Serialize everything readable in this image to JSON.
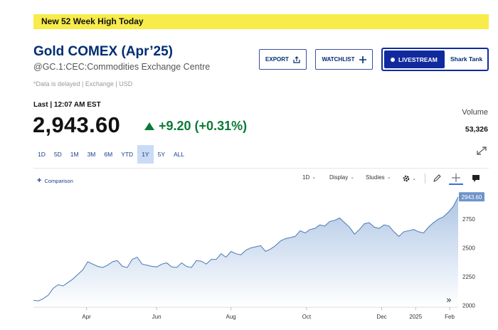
{
  "banner": {
    "text": "New 52 Week High Today"
  },
  "header": {
    "title": "Gold COMEX (Apr’25)",
    "subtitle": "@GC.1:CEC:Commodities Exchange Centre",
    "delay_note": "*Data is delayed | Exchange | USD"
  },
  "actions": {
    "export_label": "EXPORT",
    "watchlist_label": "WATCHLIST",
    "livestream_label": "LIVESTREAM",
    "livestream_show": "Shark Tank"
  },
  "quote": {
    "last_label": "Last | 12:07 AM EST",
    "price": "2,943.60",
    "change": "+9.20 (+0.31%)",
    "volume_label": "Volume",
    "volume": "53,326"
  },
  "ranges": [
    "1D",
    "5D",
    "1M",
    "3M",
    "6M",
    "YTD",
    "1Y",
    "5Y",
    "ALL"
  ],
  "active_range": "1Y",
  "chart_toolbar": {
    "comparison_label": "Comparison",
    "interval_label": "1D",
    "display_label": "Display",
    "studies_label": "Studies"
  },
  "colors": {
    "accent": "#002d72",
    "positive": "#0b7a37",
    "line": "#4a77b4",
    "fill_top": "#a9c2e3",
    "price_tag": "#6f93c9"
  },
  "icons": [
    "share-icon",
    "plus-icon",
    "gear-icon",
    "pencil-icon",
    "crosshair-icon",
    "comment-icon",
    "expand-icon",
    "double-chevron-right-icon"
  ],
  "chart_data": {
    "type": "area",
    "x_ticks": [
      "Apr",
      "Jun",
      "Aug",
      "Oct",
      "Dec",
      "2025",
      "Feb"
    ],
    "y_ticks": [
      2000,
      2250,
      2500,
      2750
    ],
    "ylim": [
      1985,
      3010
    ],
    "last_value_label": "2943.60",
    "last_value": 2943.6,
    "series": [
      {
        "x": [
          0,
          3,
          6,
          9,
          12,
          15,
          18,
          21,
          24,
          27,
          30,
          33,
          36,
          39,
          42,
          45,
          48,
          51,
          54,
          57,
          60,
          63,
          66,
          69,
          72,
          75,
          78,
          81,
          84,
          87,
          90,
          93,
          96,
          99,
          102,
          105,
          108,
          111,
          114,
          117,
          120,
          123,
          126,
          129,
          132,
          135,
          138,
          141,
          144,
          147,
          150,
          153,
          156,
          159,
          162,
          165,
          168,
          171,
          174,
          177,
          180,
          183,
          186,
          189,
          192,
          195,
          198,
          201,
          204,
          207,
          210,
          213,
          216,
          219,
          222,
          225,
          228,
          231,
          234,
          237,
          240,
          243,
          246,
          249,
          252,
          255,
          258
        ],
        "values": [
          2045,
          2040,
          2060,
          2090,
          2150,
          2180,
          2170,
          2200,
          2230,
          2270,
          2310,
          2380,
          2360,
          2340,
          2330,
          2350,
          2380,
          2390,
          2340,
          2330,
          2400,
          2420,
          2360,
          2350,
          2340,
          2335,
          2360,
          2370,
          2335,
          2330,
          2370,
          2340,
          2330,
          2390,
          2385,
          2360,
          2400,
          2400,
          2450,
          2420,
          2470,
          2450,
          2440,
          2480,
          2500,
          2510,
          2520,
          2470,
          2490,
          2520,
          2560,
          2580,
          2590,
          2600,
          2650,
          2630,
          2660,
          2670,
          2700,
          2690,
          2730,
          2740,
          2760,
          2720,
          2680,
          2620,
          2660,
          2710,
          2720,
          2680,
          2670,
          2700,
          2690,
          2640,
          2600,
          2640,
          2650,
          2660,
          2640,
          2630,
          2680,
          2720,
          2750,
          2770,
          2810,
          2860,
          2943.6
        ]
      }
    ]
  }
}
